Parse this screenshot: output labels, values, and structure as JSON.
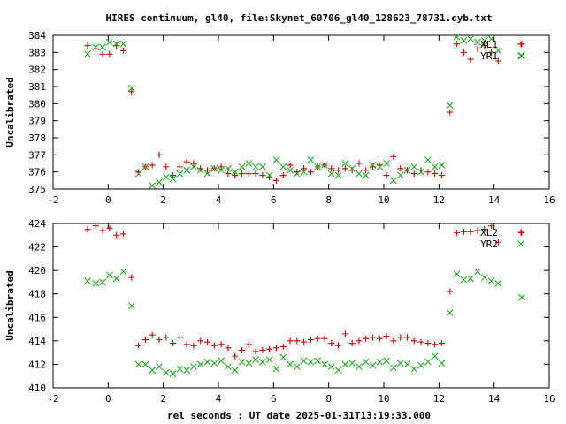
{
  "colors": {
    "series_plus": "#cc0000",
    "series_x": "#22aa22",
    "axes": "#000000",
    "background": "#ffffff"
  },
  "chart_data": [
    {
      "type": "scatter",
      "title": "HIRES continuum, gl40, file:Skynet_60706_gl40_128623_78731.cyb.txt",
      "xlabel": "",
      "ylabel": "Uncalibrated",
      "xlim": [
        -2,
        16
      ],
      "ylim": [
        375,
        384
      ],
      "xticks": [
        -2,
        0,
        2,
        4,
        6,
        8,
        10,
        12,
        14,
        16
      ],
      "yticks": [
        375,
        376,
        377,
        378,
        379,
        380,
        381,
        382,
        383,
        384
      ],
      "grid": false,
      "legend_position": "top-right",
      "series": [
        {
          "name": "XL1",
          "marker": "plus",
          "x": [
            -0.75,
            -0.45,
            -0.2,
            0.05,
            0.3,
            0.55,
            0.85,
            1.1,
            1.35,
            1.6,
            1.85,
            2.1,
            2.35,
            2.6,
            2.85,
            3.1,
            3.35,
            3.6,
            3.85,
            4.1,
            4.35,
            4.6,
            4.85,
            5.1,
            5.35,
            5.6,
            5.85,
            6.1,
            6.35,
            6.6,
            6.85,
            7.1,
            7.35,
            7.6,
            7.85,
            8.1,
            8.35,
            8.6,
            8.85,
            9.1,
            9.35,
            9.6,
            9.85,
            10.1,
            10.35,
            10.6,
            10.85,
            11.1,
            11.35,
            11.6,
            11.85,
            12.1,
            12.4,
            12.65,
            12.9,
            13.15,
            13.4,
            13.65,
            13.9,
            14.15,
            15.0
          ],
          "y": [
            383.4,
            383.2,
            382.9,
            382.9,
            383.4,
            383.1,
            380.7,
            376.0,
            376.3,
            376.4,
            377.0,
            376.3,
            375.8,
            376.3,
            376.6,
            376.5,
            376.2,
            376.1,
            376.2,
            376.3,
            375.9,
            375.8,
            375.9,
            375.9,
            375.9,
            375.8,
            375.7,
            375.5,
            375.8,
            376.4,
            376.0,
            376.2,
            376.0,
            376.3,
            376.4,
            376.2,
            376.1,
            376.2,
            376.1,
            376.5,
            376.1,
            376.3,
            376.4,
            375.8,
            376.9,
            376.2,
            376.1,
            375.9,
            376.1,
            376.0,
            375.9,
            375.8,
            379.5,
            383.5,
            383.0,
            382.6,
            383.2,
            383.4,
            383.0,
            382.5,
            383.5
          ]
        },
        {
          "name": "YR1",
          "marker": "cross",
          "x": [
            -0.75,
            -0.45,
            -0.2,
            0.05,
            0.3,
            0.55,
            0.85,
            1.1,
            1.35,
            1.6,
            1.85,
            2.1,
            2.35,
            2.6,
            2.85,
            3.1,
            3.35,
            3.6,
            3.85,
            4.1,
            4.35,
            4.6,
            4.85,
            5.1,
            5.35,
            5.6,
            5.85,
            6.1,
            6.35,
            6.6,
            6.85,
            7.1,
            7.35,
            7.6,
            7.85,
            8.1,
            8.35,
            8.6,
            8.85,
            9.1,
            9.35,
            9.6,
            9.85,
            10.1,
            10.35,
            10.6,
            10.85,
            11.1,
            11.35,
            11.6,
            11.85,
            12.1,
            12.4,
            12.65,
            12.9,
            13.15,
            13.4,
            13.65,
            13.9,
            14.15,
            15.0
          ],
          "y": [
            382.9,
            383.3,
            383.3,
            383.6,
            383.5,
            383.5,
            380.9,
            375.9,
            376.3,
            375.2,
            375.4,
            375.7,
            375.6,
            375.9,
            376.1,
            376.3,
            376.1,
            375.9,
            376.2,
            376.1,
            376.2,
            376.0,
            376.3,
            376.5,
            376.3,
            376.3,
            375.8,
            376.7,
            376.3,
            376.1,
            375.9,
            376.0,
            376.7,
            376.3,
            376.4,
            375.9,
            375.8,
            376.5,
            376.2,
            375.9,
            375.8,
            376.4,
            376.3,
            376.5,
            375.5,
            375.8,
            376.1,
            376.3,
            376.0,
            376.7,
            376.3,
            376.4,
            379.9,
            383.9,
            383.7,
            383.8,
            383.6,
            383.7,
            383.8,
            383.1,
            382.8
          ]
        }
      ]
    },
    {
      "type": "scatter",
      "title": "",
      "xlabel": "rel seconds : UT date 2025-01-31T13:19:33.000",
      "ylabel": "Uncalibrated",
      "xlim": [
        -2,
        16
      ],
      "ylim": [
        410,
        424
      ],
      "xticks": [
        -2,
        0,
        2,
        4,
        6,
        8,
        10,
        12,
        14,
        16
      ],
      "yticks": [
        410,
        412,
        414,
        416,
        418,
        420,
        422,
        424
      ],
      "grid": false,
      "legend_position": "top-right",
      "series": [
        {
          "name": "XL2",
          "marker": "plus",
          "x": [
            -0.75,
            -0.45,
            -0.2,
            0.05,
            0.3,
            0.55,
            0.85,
            1.1,
            1.35,
            1.6,
            1.85,
            2.1,
            2.35,
            2.6,
            2.85,
            3.1,
            3.35,
            3.6,
            3.85,
            4.1,
            4.35,
            4.6,
            4.85,
            5.1,
            5.35,
            5.6,
            5.85,
            6.1,
            6.35,
            6.6,
            6.85,
            7.1,
            7.35,
            7.6,
            7.85,
            8.1,
            8.35,
            8.6,
            8.85,
            9.1,
            9.35,
            9.6,
            9.85,
            10.1,
            10.35,
            10.6,
            10.85,
            11.1,
            11.35,
            11.6,
            11.85,
            12.1,
            12.4,
            12.65,
            12.9,
            13.15,
            13.4,
            13.65,
            13.9,
            14.15,
            15.0
          ],
          "y": [
            423.5,
            423.8,
            423.4,
            423.6,
            423.0,
            423.1,
            419.4,
            413.6,
            414.1,
            414.5,
            414.1,
            414.3,
            413.8,
            414.3,
            413.7,
            413.6,
            414.0,
            413.9,
            413.6,
            413.7,
            413.4,
            412.7,
            413.2,
            413.7,
            413.1,
            413.2,
            413.3,
            413.4,
            413.5,
            414.0,
            414.0,
            413.9,
            414.1,
            414.2,
            414.2,
            413.8,
            413.6,
            414.6,
            413.8,
            414.0,
            414.2,
            414.3,
            414.2,
            414.4,
            414.0,
            414.3,
            414.3,
            414.0,
            413.9,
            413.8,
            413.7,
            413.8,
            418.2,
            423.2,
            423.3,
            423.3,
            423.4,
            423.5,
            423.8,
            422.4,
            423.2
          ]
        },
        {
          "name": "YR2",
          "marker": "cross",
          "x": [
            -0.75,
            -0.45,
            -0.2,
            0.05,
            0.3,
            0.55,
            0.85,
            1.1,
            1.35,
            1.6,
            1.85,
            2.1,
            2.35,
            2.6,
            2.85,
            3.1,
            3.35,
            3.6,
            3.85,
            4.1,
            4.35,
            4.6,
            4.85,
            5.1,
            5.35,
            5.6,
            5.85,
            6.1,
            6.35,
            6.6,
            6.85,
            7.1,
            7.35,
            7.6,
            7.85,
            8.1,
            8.35,
            8.6,
            8.85,
            9.1,
            9.35,
            9.6,
            9.85,
            10.1,
            10.35,
            10.6,
            10.85,
            11.1,
            11.35,
            11.6,
            11.85,
            12.1,
            12.4,
            12.65,
            12.9,
            13.15,
            13.4,
            13.65,
            13.9,
            14.15,
            15.0
          ],
          "y": [
            419.1,
            418.9,
            419.0,
            419.6,
            419.3,
            419.9,
            417.0,
            412.0,
            412.0,
            411.5,
            411.8,
            411.3,
            411.2,
            411.6,
            411.5,
            411.8,
            412.0,
            412.2,
            412.1,
            412.3,
            411.8,
            411.5,
            412.2,
            412.1,
            412.4,
            412.2,
            412.4,
            411.6,
            412.6,
            412.0,
            411.8,
            412.3,
            412.2,
            412.3,
            412.0,
            411.8,
            411.5,
            412.0,
            412.1,
            411.8,
            412.2,
            411.9,
            412.2,
            412.3,
            411.7,
            412.1,
            412.0,
            411.6,
            411.9,
            412.2,
            412.7,
            412.1,
            416.4,
            419.7,
            419.2,
            419.3,
            419.9,
            419.4,
            419.1,
            418.9,
            417.7
          ]
        }
      ]
    }
  ]
}
